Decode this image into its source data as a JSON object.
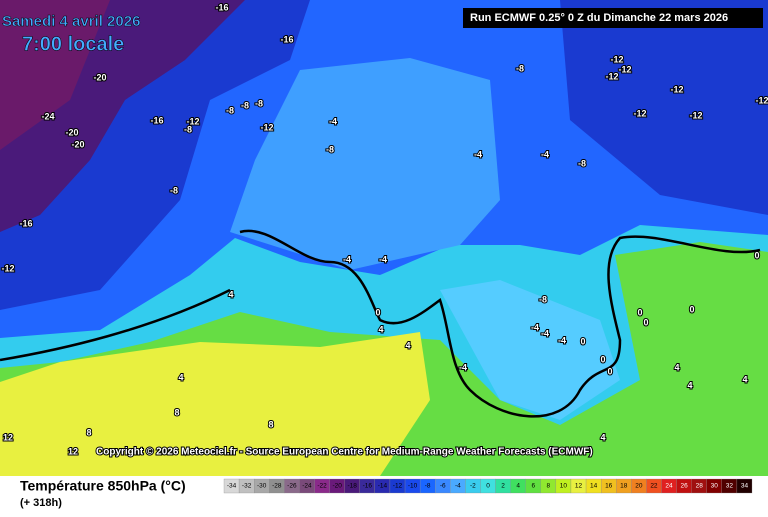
{
  "header": {
    "date": "Samedi 4 avril 2026",
    "time": "7:00 locale",
    "run": "Run ECMWF 0.25° 0 Z du Dimanche 22 mars 2026"
  },
  "copyright": "Copyright © 2026 Meteociel.fr - Source European Centre for Medium-Range Weather Forecasts (ECMWF)",
  "footer": {
    "title": "Température 850hPa (°C)",
    "subtitle": "(+ 318h)"
  },
  "isotherm_labels": [
    -16,
    -16,
    -20,
    -24,
    -20,
    -20,
    -16,
    -12,
    -8,
    -8,
    -8,
    -8,
    -12,
    -4,
    -8,
    -8,
    -16,
    -12,
    -4,
    -4,
    4,
    0,
    4,
    4,
    -4,
    -8,
    -4,
    -8,
    -12,
    -12,
    -12,
    -12,
    -12,
    -12,
    -12,
    -8,
    -4,
    -4,
    -4,
    0,
    0,
    0,
    0,
    0,
    0,
    0,
    4,
    4,
    4,
    4,
    4,
    8,
    8,
    8,
    12,
    12,
    -4
  ],
  "legend": {
    "ticks": [
      -34,
      -32,
      -30,
      -28,
      -26,
      -24,
      -22,
      -20,
      -18,
      -16,
      -14,
      -12,
      -10,
      -8,
      -6,
      -4,
      -2,
      0,
      2,
      4,
      6,
      8,
      10,
      12,
      14,
      16,
      18,
      20,
      22,
      24,
      26,
      28,
      30,
      32,
      34
    ],
    "colors": [
      "#d8d8d8",
      "#c0c0c0",
      "#a8a8a8",
      "#909090",
      "#8a6a8a",
      "#7a4a7a",
      "#8a2a8a",
      "#6a1a7a",
      "#4a1a7a",
      "#3a2a9a",
      "#2a2ab0",
      "#1a3ad0",
      "#1a4aee",
      "#1a66ff",
      "#3a88ff",
      "#4aaaff",
      "#3accee",
      "#40e0e0",
      "#30e0a0",
      "#40e060",
      "#60e040",
      "#90e830",
      "#c0f020",
      "#e8f040",
      "#f0e020",
      "#f0c020",
      "#f0a020",
      "#f08020",
      "#f05020",
      "#e02020",
      "#c01010",
      "#a01010",
      "#800000",
      "#500000",
      "#200000"
    ]
  }
}
